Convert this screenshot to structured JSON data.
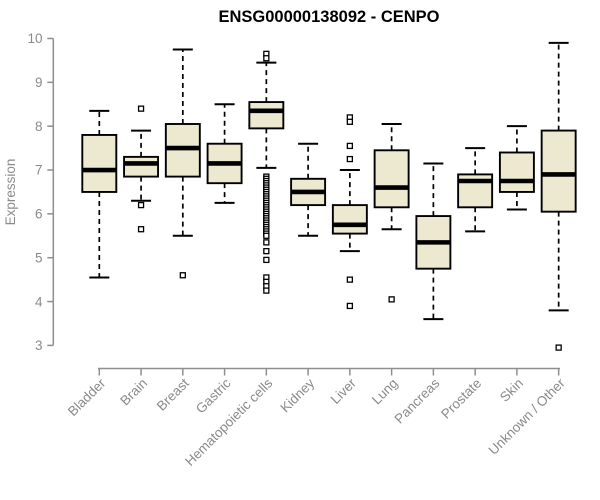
{
  "chart_data": {
    "type": "boxplot",
    "title": "ENSG00000138092 - CENPO",
    "ylabel": "Expression",
    "ylim": [
      3,
      10
    ],
    "yticks": [
      3,
      4,
      5,
      6,
      7,
      8,
      9,
      10
    ],
    "grid": false,
    "legend": "none",
    "categories": [
      "Bladder",
      "Brain",
      "Breast",
      "Gastric",
      "Hematopoietic cells",
      "Kidney",
      "Liver",
      "Lung",
      "Pancreas",
      "Prostate",
      "Skin",
      "Unknown / Other"
    ],
    "boxes": [
      {
        "category": "Bladder",
        "whisker_low": 4.55,
        "q1": 6.5,
        "median": 7.0,
        "q3": 7.8,
        "whisker_high": 8.35,
        "outliers": []
      },
      {
        "category": "Brain",
        "whisker_low": 6.3,
        "q1": 6.85,
        "median": 7.15,
        "q3": 7.3,
        "whisker_high": 7.9,
        "outliers": [
          8.4,
          6.2,
          5.65
        ]
      },
      {
        "category": "Breast",
        "whisker_low": 5.5,
        "q1": 6.85,
        "median": 7.5,
        "q3": 8.05,
        "whisker_high": 9.75,
        "outliers": [
          4.6
        ]
      },
      {
        "category": "Gastric",
        "whisker_low": 6.25,
        "q1": 6.7,
        "median": 7.15,
        "q3": 7.6,
        "whisker_high": 8.5,
        "outliers": []
      },
      {
        "category": "Hematopoietic cells",
        "whisker_low": 7.05,
        "q1": 7.95,
        "median": 8.35,
        "q3": 8.55,
        "whisker_high": 9.45,
        "outliers": [
          9.65,
          9.55,
          6.85,
          6.8,
          6.75,
          6.7,
          6.65,
          6.6,
          6.55,
          6.5,
          6.45,
          6.4,
          6.35,
          6.3,
          6.25,
          6.2,
          6.15,
          6.1,
          6.05,
          6.0,
          5.95,
          5.9,
          5.85,
          5.8,
          5.75,
          5.7,
          5.65,
          5.6,
          5.55,
          5.5,
          5.35,
          5.15,
          4.95,
          4.55,
          4.45,
          4.35,
          4.25
        ]
      },
      {
        "category": "Kidney",
        "whisker_low": 5.5,
        "q1": 6.2,
        "median": 6.5,
        "q3": 6.8,
        "whisker_high": 7.6,
        "outliers": []
      },
      {
        "category": "Liver",
        "whisker_low": 5.15,
        "q1": 5.55,
        "median": 5.75,
        "q3": 6.2,
        "whisker_high": 7.0,
        "outliers": [
          8.2,
          8.1,
          7.55,
          7.25,
          4.5,
          3.9
        ]
      },
      {
        "category": "Lung",
        "whisker_low": 5.65,
        "q1": 6.15,
        "median": 6.6,
        "q3": 7.45,
        "whisker_high": 8.05,
        "outliers": [
          4.05
        ]
      },
      {
        "category": "Pancreas",
        "whisker_low": 3.6,
        "q1": 4.75,
        "median": 5.35,
        "q3": 5.95,
        "whisker_high": 7.15,
        "outliers": []
      },
      {
        "category": "Prostate",
        "whisker_low": 5.6,
        "q1": 6.15,
        "median": 6.75,
        "q3": 6.9,
        "whisker_high": 7.5,
        "outliers": []
      },
      {
        "category": "Skin",
        "whisker_low": 6.1,
        "q1": 6.5,
        "median": 6.75,
        "q3": 7.4,
        "whisker_high": 8.0,
        "outliers": []
      },
      {
        "category": "Unknown / Other",
        "whisker_low": 3.8,
        "q1": 6.05,
        "median": 6.9,
        "q3": 7.9,
        "whisker_high": 9.9,
        "outliers": [
          2.95
        ]
      }
    ],
    "colors": {
      "box_fill": "#EDE8D0",
      "box_border": "#000000",
      "median": "#000000",
      "whisker": "#000000",
      "outlier": "#000000",
      "axis": "#8f8f8f",
      "tick_text": "#8a8a8a",
      "title_text": "#000000",
      "background": "#ffffff"
    }
  }
}
